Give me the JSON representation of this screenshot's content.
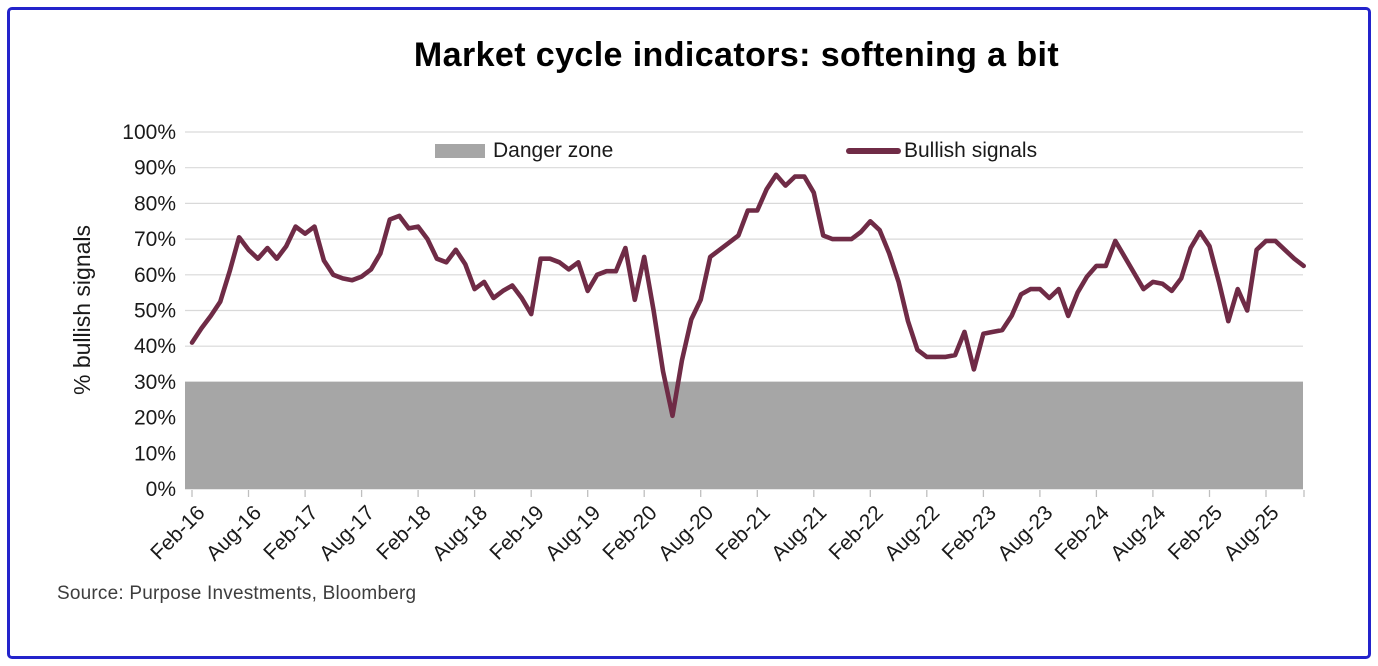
{
  "title": "Market cycle indicators: softening a bit",
  "source": "Source: Purpose Investments, Bloomberg",
  "legend": {
    "danger": "Danger zone",
    "bullish": "Bullish signals"
  },
  "colors": {
    "line": "#6f2b46",
    "danger_zone": "#a6a6a6",
    "frame": "#2323cb",
    "gridline": "#d9d9d9",
    "tick": "#bfbfbf",
    "text": "#1a1a1a"
  },
  "chart_data": {
    "type": "line",
    "title": "Market cycle indicators: softening a bit",
    "xlabel": "",
    "ylabel": "% bullish signals",
    "ylim": [
      0,
      100
    ],
    "ytick_step": 10,
    "ytick_labels": [
      "0%",
      "10%",
      "20%",
      "30%",
      "40%",
      "50%",
      "60%",
      "70%",
      "80%",
      "90%",
      "100%"
    ],
    "grid": true,
    "legend_position": "top-inside",
    "x_frequency": "monthly",
    "x_start": "Feb-16",
    "x_end": "Dec-25",
    "x_tick_labels": [
      "Feb-16",
      "Aug-16",
      "Feb-17",
      "Aug-17",
      "Feb-18",
      "Aug-18",
      "Feb-19",
      "Aug-19",
      "Feb-20",
      "Aug-20",
      "Feb-21",
      "Aug-21",
      "Feb-22",
      "Aug-22",
      "Feb-23",
      "Aug-23",
      "Feb-24",
      "Aug-24",
      "Feb-25",
      "Aug-25"
    ],
    "x_tick_month_indices": [
      0,
      6,
      12,
      18,
      24,
      30,
      36,
      42,
      48,
      54,
      60,
      66,
      72,
      78,
      84,
      90,
      96,
      102,
      108,
      114
    ],
    "danger_zone": {
      "label": "Danger zone",
      "ymin": 0,
      "ymax": 30
    },
    "series": [
      {
        "name": "Bullish signals",
        "values": [
          41,
          45,
          48.5,
          52.5,
          61,
          70.5,
          67,
          64.5,
          67.5,
          64.5,
          68,
          73.5,
          71.5,
          73.5,
          64,
          60,
          59,
          58.5,
          59.5,
          61.5,
          66,
          75.5,
          76.5,
          73,
          73.5,
          70,
          64.5,
          63.5,
          67,
          63,
          56,
          58,
          53.5,
          55.5,
          57,
          53.5,
          49,
          64.5,
          64.5,
          63.5,
          61.5,
          63.5,
          55.5,
          60,
          61,
          61,
          67.5,
          53,
          65,
          50,
          33,
          20.5,
          36,
          47.5,
          53,
          65,
          67,
          69,
          71,
          78,
          78,
          84,
          88,
          85,
          87.5,
          87.5,
          83,
          71,
          70,
          70,
          70,
          72,
          75,
          72.5,
          66,
          58,
          47,
          39,
          37,
          37,
          37,
          37.5,
          44,
          33.5,
          43.5,
          44,
          44.5,
          48.5,
          54.5,
          56,
          56,
          53.5,
          56,
          48.5,
          55,
          59.5,
          62.5,
          62.5,
          69.5,
          65,
          60.5,
          56,
          58,
          57.5,
          55.5,
          59,
          67.5,
          72,
          68,
          58,
          47,
          56,
          50,
          67,
          69.5,
          69.5,
          67,
          64.5,
          62.5
        ]
      }
    ]
  }
}
